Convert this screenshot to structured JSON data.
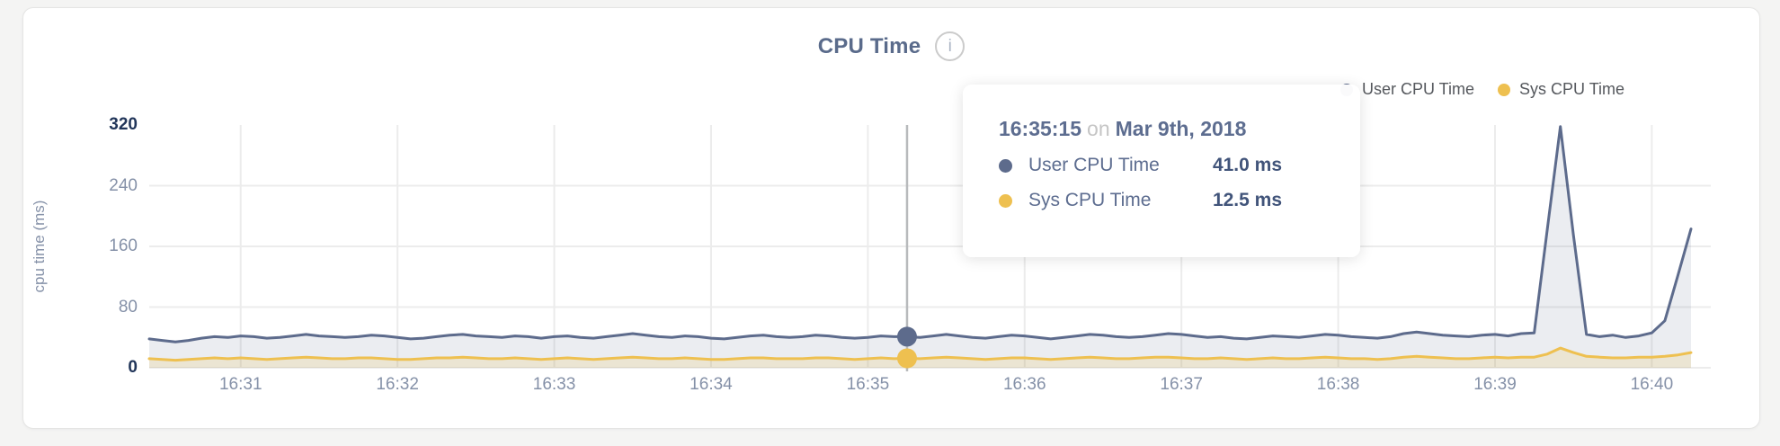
{
  "header": {
    "title": "CPU Time",
    "info_icon": "i"
  },
  "legend": [
    {
      "label": "User CPU Time",
      "color": "#5d6b8c"
    },
    {
      "label": "Sys CPU Time",
      "color": "#eec050"
    }
  ],
  "tooltip": {
    "time": "16:35:15",
    "preposition": "on",
    "date": "Mar 9th, 2018",
    "rows": [
      {
        "label": "User CPU Time",
        "value": "41.0 ms",
        "color": "#5d6b8c"
      },
      {
        "label": "Sys CPU Time",
        "value": "12.5 ms",
        "color": "#eec050"
      }
    ]
  },
  "theme": {
    "grid_color": "#ececec",
    "crosshair_color": "#b8babc",
    "tick_color": "#8591a8",
    "tick_extreme_color": "#22365a",
    "title_color": "#5a6b8b",
    "page_bg": "#f4f4f3",
    "card_bg": "#ffffff"
  },
  "chart_data": {
    "type": "area",
    "title": "CPU Time",
    "xlabel": "",
    "ylabel": "cpu time (ms)",
    "ylim": [
      0,
      320
    ],
    "yticks": [
      0,
      80,
      160,
      240,
      320
    ],
    "grid": true,
    "legend_position": "top-right",
    "x_start": "16:30:25",
    "x_end": "16:40:15",
    "x_step_seconds": 5,
    "xticks": [
      "16:31",
      "16:32",
      "16:33",
      "16:34",
      "16:35",
      "16:36",
      "16:37",
      "16:38",
      "16:39",
      "16:40"
    ],
    "highlight_index": 58,
    "highlight_time": "16:35:15",
    "series": [
      {
        "name": "User CPU Time",
        "color": "#5d6b8c",
        "fill": "rgba(93,107,140,0.12)",
        "unit": "ms",
        "values": [
          38,
          36,
          34,
          36,
          39,
          41,
          40,
          42,
          41,
          39,
          40,
          42,
          44,
          42,
          41,
          40,
          41,
          43,
          42,
          40,
          38,
          39,
          41,
          43,
          44,
          42,
          41,
          40,
          42,
          41,
          39,
          41,
          42,
          40,
          39,
          41,
          43,
          45,
          43,
          41,
          40,
          42,
          41,
          39,
          38,
          40,
          42,
          43,
          41,
          40,
          41,
          43,
          42,
          40,
          39,
          40,
          42,
          41,
          41,
          40,
          42,
          44,
          42,
          40,
          39,
          41,
          43,
          42,
          40,
          38,
          40,
          42,
          44,
          43,
          41,
          40,
          41,
          43,
          45,
          44,
          42,
          40,
          41,
          39,
          38,
          40,
          42,
          41,
          40,
          42,
          44,
          43,
          41,
          40,
          39,
          41,
          45,
          47,
          45,
          43,
          42,
          41,
          43,
          44,
          42,
          45,
          46,
          182,
          318,
          175,
          44,
          41,
          43,
          40,
          42,
          46,
          62,
          122,
          183
        ]
      },
      {
        "name": "Sys CPU Time",
        "color": "#eec050",
        "fill": "rgba(238,192,80,0.18)",
        "unit": "ms",
        "values": [
          12,
          11,
          10,
          11,
          12,
          13,
          12,
          13,
          12,
          11,
          12,
          13,
          14,
          13,
          12,
          12,
          13,
          13,
          12,
          11,
          11,
          12,
          13,
          13,
          14,
          13,
          12,
          12,
          13,
          12,
          11,
          12,
          13,
          12,
          11,
          12,
          13,
          14,
          13,
          12,
          12,
          13,
          12,
          11,
          11,
          12,
          13,
          13,
          12,
          12,
          12,
          13,
          13,
          12,
          11,
          12,
          13,
          12,
          12.5,
          12,
          13,
          14,
          13,
          12,
          11,
          12,
          13,
          13,
          12,
          11,
          12,
          13,
          14,
          13,
          12,
          12,
          13,
          14,
          14,
          13,
          12,
          12,
          13,
          12,
          11,
          12,
          13,
          12,
          12,
          13,
          14,
          13,
          12,
          12,
          11,
          12,
          14,
          15,
          14,
          13,
          12,
          12,
          13,
          14,
          13,
          14,
          14,
          18,
          26,
          20,
          15,
          14,
          13,
          13,
          14,
          14,
          15,
          17,
          20
        ]
      }
    ]
  }
}
